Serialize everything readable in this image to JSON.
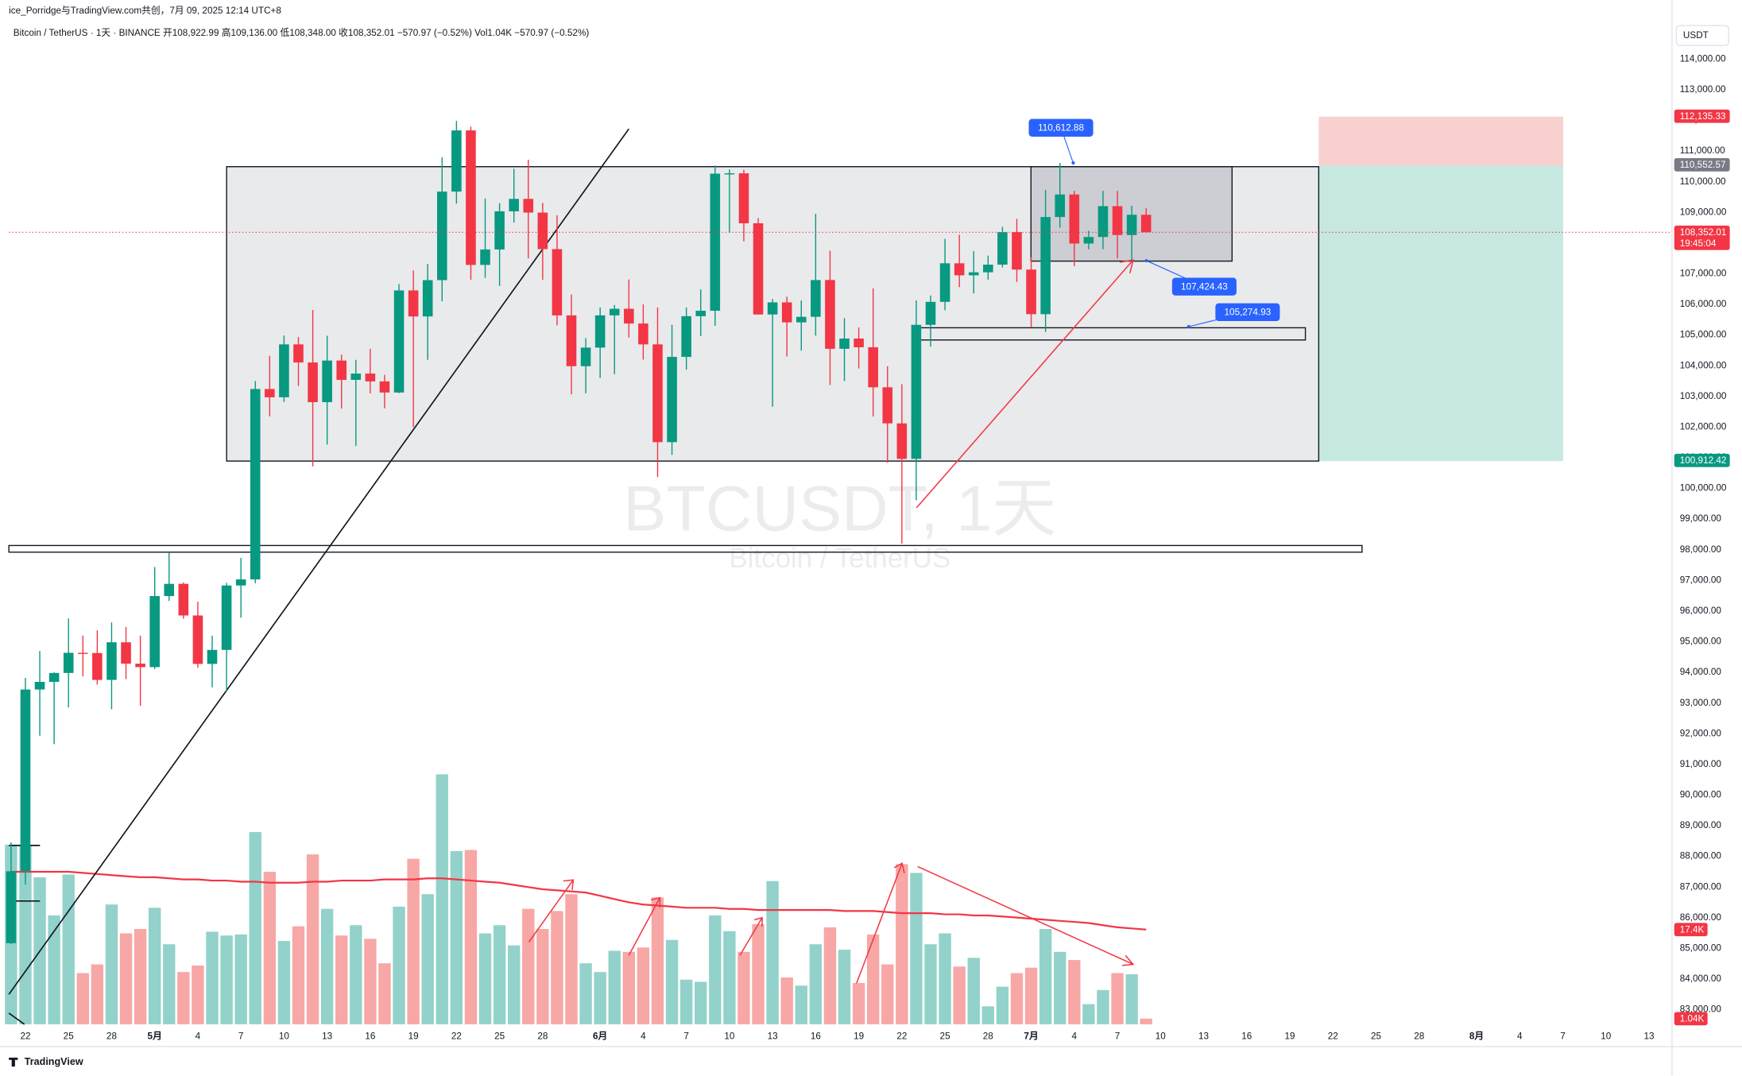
{
  "header": {
    "credit": "ice_Porridge与TradingView.com共创，7月 09, 2025 12:14 UTC+8",
    "legend": "Bitcoin / TetherUS · 1天 · BINANCE   开108,922.99  高109,136.00  低108,348.00  收108,352.01  −570.97 (−0.52%)   Vol1.04K   −570.97 (−0.52%)"
  },
  "watermark": {
    "symbol": "BTCUSDT, 1天",
    "name": "Bitcoin / TetherUS"
  },
  "footer": "TradingView",
  "chart_data": {
    "type": "candlestick",
    "axis_unit": "USDT",
    "up_color": "#089981",
    "down_color": "#f23645",
    "volume_up_color": "#92d2ca",
    "volume_down_color": "#f7a7a5",
    "xlim": [
      -0.15,
      115.6
    ],
    "ylim": [
      81800,
      115200
    ],
    "volume_ylim": [
      0,
      184
    ],
    "xticks": [
      {
        "value": 1,
        "label": "22"
      },
      {
        "value": 4,
        "label": "25"
      },
      {
        "value": 7,
        "label": "28"
      },
      {
        "value": 10,
        "label": "5月"
      },
      {
        "value": 13,
        "label": "4"
      },
      {
        "value": 16,
        "label": "7"
      },
      {
        "value": 19,
        "label": "10"
      },
      {
        "value": 22,
        "label": "13"
      },
      {
        "value": 25,
        "label": "16"
      },
      {
        "value": 28,
        "label": "19"
      },
      {
        "value": 31,
        "label": "22"
      },
      {
        "value": 34,
        "label": "25"
      },
      {
        "value": 37,
        "label": "28"
      },
      {
        "value": 41,
        "label": "6月"
      },
      {
        "value": 44,
        "label": "4"
      },
      {
        "value": 47,
        "label": "7"
      },
      {
        "value": 50,
        "label": "10"
      },
      {
        "value": 53,
        "label": "13"
      },
      {
        "value": 56,
        "label": "16"
      },
      {
        "value": 59,
        "label": "19"
      },
      {
        "value": 62,
        "label": "22"
      },
      {
        "value": 65,
        "label": "25"
      },
      {
        "value": 68,
        "label": "28"
      },
      {
        "value": 71,
        "label": "7月"
      },
      {
        "value": 74,
        "label": "4"
      },
      {
        "value": 77,
        "label": "7"
      },
      {
        "value": 80,
        "label": "10"
      },
      {
        "value": 83,
        "label": "13"
      },
      {
        "value": 86,
        "label": "16"
      },
      {
        "value": 89,
        "label": "19"
      },
      {
        "value": 92,
        "label": "22"
      },
      {
        "value": 95,
        "label": "25"
      },
      {
        "value": 98,
        "label": "28"
      },
      {
        "value": 102,
        "label": "8月"
      },
      {
        "value": 105,
        "label": "4"
      },
      {
        "value": 108,
        "label": "7"
      },
      {
        "value": 111,
        "label": "10"
      },
      {
        "value": 114,
        "label": "13"
      }
    ],
    "yticks": [
      {
        "value": 83000,
        "label": "83,000.00"
      },
      {
        "value": 84000,
        "label": "84,000.00"
      },
      {
        "value": 85000,
        "label": "85,000.00"
      },
      {
        "value": 86000,
        "label": "86,000.00"
      },
      {
        "value": 87000,
        "label": "87,000.00"
      },
      {
        "value": 88000,
        "label": "88,000.00"
      },
      {
        "value": 89000,
        "label": "89,000.00"
      },
      {
        "value": 90000,
        "label": "90,000.00"
      },
      {
        "value": 91000,
        "label": "91,000.00"
      },
      {
        "value": 92000,
        "label": "92,000.00"
      },
      {
        "value": 93000,
        "label": "93,000.00"
      },
      {
        "value": 94000,
        "label": "94,000.00"
      },
      {
        "value": 95000,
        "label": "95,000.00"
      },
      {
        "value": 96000,
        "label": "96,000.00"
      },
      {
        "value": 97000,
        "label": "97,000.00"
      },
      {
        "value": 98000,
        "label": "98,000.00"
      },
      {
        "value": 99000,
        "label": "99,000.00"
      },
      {
        "value": 100000,
        "label": "100,000.00"
      },
      {
        "value": 101000,
        "label": "101,000.00"
      },
      {
        "value": 102000,
        "label": "102,000.00"
      },
      {
        "value": 103000,
        "label": "103,000.00"
      },
      {
        "value": 104000,
        "label": "104,000.00"
      },
      {
        "value": 105000,
        "label": "105,000.00"
      },
      {
        "value": 106000,
        "label": "106,000.00"
      },
      {
        "value": 107000,
        "label": "107,000.00"
      },
      {
        "value": 108000,
        "label": "108,000.00"
      },
      {
        "value": 109000,
        "label": "109,000.00"
      },
      {
        "value": 110000,
        "label": "110,000.00"
      },
      {
        "value": 111000,
        "label": "111,000.00"
      },
      {
        "value": 112000,
        "label": "112,000.00"
      },
      {
        "value": 113000,
        "label": "113,000.00"
      },
      {
        "value": 114000,
        "label": "114,000.00"
      }
    ],
    "open": [
      85171,
      87514,
      93442,
      93691,
      93981,
      94638,
      94631,
      93755,
      94982,
      94284,
      94172,
      96489,
      96887,
      95856,
      94277,
      94733,
      96834,
      97032,
      103241,
      102971,
      104696,
      104106,
      102812,
      104169,
      103539,
      103744,
      103489,
      103126,
      106455,
      105607,
      106791,
      109678,
      111673,
      107287,
      107791,
      109035,
      109440,
      108994,
      107802,
      105641,
      103985,
      104591,
      105642,
      105857,
      105376,
      104696,
      101508,
      104288,
      105615,
      105793,
      110263,
      110274,
      108645,
      105671,
      106066,
      105414,
      105594,
      106794,
      104552,
      104886,
      104602,
      103297,
      102120,
      100963,
      105333,
      106083,
      107340,
      106948,
      107047,
      107296,
      108356,
      107135,
      105681,
      108849,
      109584,
      107984,
      108198,
      109203,
      108262,
      108922.99
    ],
    "high": [
      88460,
      93817,
      94696,
      94000,
      95758,
      95199,
      95369,
      95630,
      95480,
      95200,
      97437,
      97895,
      96935,
      96304,
      95199,
      96920,
      97732,
      103500,
      104324,
      104984,
      104937,
      105819,
      104976,
      104361,
      104192,
      104550,
      103704,
      106660,
      107108,
      107320,
      110797,
      111980,
      111800,
      109454,
      109300,
      110422,
      110718,
      109310,
      108910,
      106324,
      104900,
      105900,
      105980,
      106812,
      106000,
      105900,
      105333,
      105900,
      106488,
      110530,
      110400,
      110392,
      108813,
      106179,
      106252,
      106128,
      108952,
      107750,
      105550,
      105250,
      106524,
      103982,
      103400,
      106128,
      106290,
      108135,
      108272,
      107735,
      107590,
      108528,
      108789,
      107540,
      109730,
      110612.88,
      109700,
      108400,
      109700,
      109700,
      109216,
      109136
    ],
    "low": [
      85143,
      87085,
      91935,
      91660,
      92855,
      93870,
      93602,
      92800,
      93780,
      92910,
      94111,
      96330,
      95753,
      94151,
      93514,
      93377,
      95784,
      96910,
      102350,
      102818,
      103340,
      100718,
      101429,
      102602,
      101383,
      103100,
      102612,
      103105,
      102000,
      104192,
      106100,
      109285,
      106800,
      106864,
      106600,
      108670,
      107500,
      106800,
      105322,
      103068,
      103100,
      103600,
      103728,
      104920,
      104200,
      100372,
      101095,
      103873,
      104965,
      105300,
      108331,
      108055,
      105671,
      102664,
      104300,
      104494,
      104980,
      103371,
      103500,
      103910,
      102345,
      100837,
      98200,
      99613,
      104622,
      105808,
      106562,
      106356,
      106800,
      107206,
      106733,
      105250,
      105100,
      108500,
      107245,
      107800,
      107800,
      107500,
      107430,
      108348
    ],
    "close": [
      87514,
      93442,
      93691,
      93981,
      94638,
      94631,
      93755,
      94982,
      94284,
      94172,
      96489,
      96887,
      95856,
      94277,
      94733,
      96834,
      97032,
      103241,
      102971,
      104696,
      104106,
      102812,
      104169,
      103539,
      103744,
      103489,
      103126,
      106455,
      105607,
      106791,
      109678,
      111673,
      107287,
      107791,
      109035,
      109440,
      108994,
      107802,
      105641,
      103985,
      104591,
      105642,
      105857,
      105376,
      104696,
      101508,
      104288,
      105615,
      105793,
      110263,
      110274,
      108645,
      105671,
      106066,
      105414,
      105594,
      106794,
      104552,
      104886,
      104602,
      103297,
      102120,
      100963,
      105333,
      106083,
      107340,
      106948,
      107047,
      107296,
      108356,
      107135,
      105681,
      108849,
      109584,
      107984,
      108198,
      109203,
      108262,
      108922.99,
      108352.01
    ],
    "volume": [
      33,
      33,
      27,
      20,
      27.5,
      9.4,
      11,
      22,
      16.7,
      17.5,
      21.4,
      14.7,
      9.6,
      10.8,
      17,
      16.3,
      16.5,
      35.3,
      28,
      15.3,
      18,
      31.2,
      21.2,
      16.3,
      18.2,
      15.7,
      11.2,
      21.6,
      30.4,
      23.9,
      45.9,
      31.8,
      32,
      16.7,
      18.2,
      14.5,
      21.2,
      17.5,
      20.8,
      23.9,
      11.2,
      9.6,
      13.5,
      13.3,
      14.1,
      23.3,
      15.5,
      8.2,
      7.8,
      20,
      17.1,
      13.3,
      18.4,
      26.3,
      8.6,
      7.1,
      14.7,
      17.8,
      13.7,
      7.6,
      16.5,
      11,
      29.4,
      27.8,
      14.7,
      16.7,
      10.6,
      12.2,
      3.3,
      6.9,
      9.4,
      10.4,
      17.5,
      13.3,
      11.8,
      3.7,
      6.3,
      9.4,
      9.2,
      1.04
    ],
    "volume_ma": {
      "color": "#f23645",
      "values": [
        28,
        28,
        28,
        28,
        28,
        27.8,
        27.6,
        27.4,
        27.2,
        27,
        27,
        26.8,
        26.6,
        26.6,
        26.4,
        26.4,
        26.2,
        26.2,
        26,
        26,
        26,
        26.2,
        26.2,
        26.4,
        26.4,
        26.4,
        26.6,
        26.6,
        26.6,
        26.8,
        26.8,
        26.6,
        26.4,
        26.2,
        26,
        25.6,
        25.2,
        24.8,
        24.6,
        24.4,
        24.2,
        23.6,
        23,
        22.4,
        22,
        21.8,
        21.6,
        21.4,
        21.4,
        21.4,
        21.2,
        21.2,
        21,
        21,
        21,
        21,
        21,
        21,
        20.8,
        20.8,
        20.8,
        20.6,
        20.4,
        20.4,
        20.4,
        20.2,
        20.2,
        20,
        20,
        19.8,
        19.6,
        19.4,
        19.2,
        19,
        18.8,
        18.6,
        18.2,
        17.8,
        17.6,
        17.4
      ]
    },
    "price_labels": [
      {
        "value": 112135.33,
        "label": "112,135.33",
        "color": "#f23645"
      },
      {
        "value": 110552.57,
        "label": "110,552.57",
        "color": "#787b86"
      },
      {
        "value": 108352.01,
        "label": "108,352.01",
        "color": "#f23645"
      },
      {
        "value": 100912.42,
        "label": "100,912.42",
        "color": "#089981"
      }
    ],
    "countdown": "19:45:04",
    "volume_labels": [
      {
        "value": 17.4,
        "label": "17.4K",
        "color": "#f23645"
      },
      {
        "value": 1.04,
        "label": "1.04K",
        "color": "#f23645"
      }
    ],
    "callouts": [
      {
        "value": 110612.88,
        "label": "110,612.88"
      },
      {
        "value": 107424.43,
        "label": "107,424.43"
      },
      {
        "value": 105274.93,
        "label": "105,274.93"
      }
    ]
  }
}
